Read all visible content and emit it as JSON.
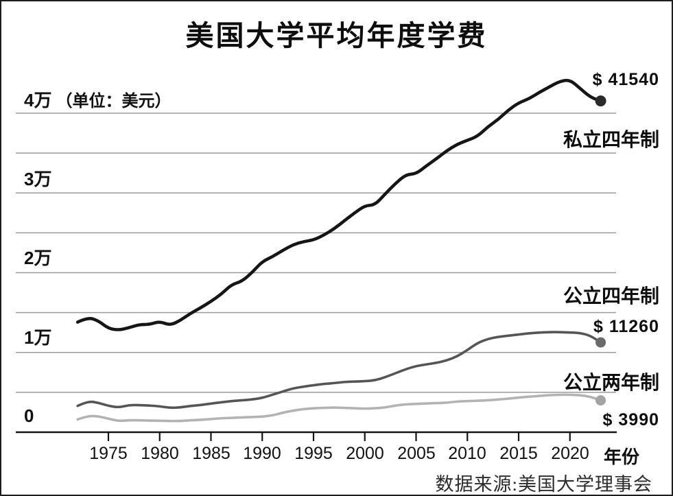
{
  "chart_data": {
    "type": "line",
    "title": "美国大学平均年度学费",
    "y_axis": {
      "unit_note": "（单位：美元）",
      "ticks": [
        {
          "value": 40000,
          "label": "4万"
        },
        {
          "value": 30000,
          "label": "3万"
        },
        {
          "value": 20000,
          "label": "2万"
        },
        {
          "value": 10000,
          "label": "1万"
        },
        {
          "value": 0,
          "label": "0"
        }
      ],
      "gridline_step": 5000,
      "range": [
        0,
        45000
      ]
    },
    "x_axis": {
      "label": "年份",
      "ticks": [
        1975,
        1980,
        1985,
        1990,
        1995,
        2000,
        2005,
        2010,
        2015,
        2020
      ],
      "range": [
        1972,
        2023
      ]
    },
    "years": [
      1972,
      1973,
      1974,
      1975,
      1976,
      1977,
      1978,
      1979,
      1980,
      1981,
      1982,
      1983,
      1984,
      1985,
      1986,
      1987,
      1988,
      1989,
      1990,
      1991,
      1992,
      1993,
      1994,
      1995,
      1996,
      1997,
      1998,
      1999,
      2000,
      2001,
      2002,
      2003,
      2004,
      2005,
      2006,
      2007,
      2008,
      2009,
      2010,
      2011,
      2012,
      2013,
      2014,
      2015,
      2016,
      2017,
      2018,
      2019,
      2020,
      2021,
      2022,
      2023
    ],
    "series": [
      {
        "name": "私立四年制",
        "end_label": "$ 41540",
        "end_value": 41540,
        "color": "#161616",
        "dot_color": "#2a2a2a",
        "values": [
          13800,
          14400,
          14000,
          13000,
          12800,
          13100,
          13500,
          13500,
          13900,
          13400,
          14000,
          14900,
          15600,
          16400,
          17300,
          18500,
          18900,
          20000,
          21400,
          22000,
          22800,
          23500,
          23900,
          24100,
          24700,
          25500,
          26500,
          27500,
          28400,
          28500,
          29900,
          31200,
          32300,
          32400,
          33400,
          34300,
          35300,
          36100,
          36600,
          37100,
          38300,
          39200,
          40400,
          41300,
          41800,
          42600,
          43300,
          44000,
          44200,
          43100,
          42000,
          41540
        ]
      },
      {
        "name": "公立四年制",
        "end_label": "$ 11260",
        "end_value": 11260,
        "color": "#555555",
        "dot_color": "#6a6a6a",
        "values": [
          3300,
          3900,
          3700,
          3300,
          3100,
          3400,
          3400,
          3350,
          3250,
          3050,
          3100,
          3300,
          3400,
          3600,
          3750,
          3900,
          4000,
          4100,
          4300,
          4700,
          5100,
          5500,
          5700,
          5900,
          6050,
          6150,
          6300,
          6350,
          6400,
          6500,
          6900,
          7400,
          7900,
          8300,
          8500,
          8700,
          9000,
          9500,
          10300,
          11200,
          11700,
          11950,
          12100,
          12250,
          12400,
          12500,
          12550,
          12550,
          12500,
          12450,
          12100,
          11260
        ]
      },
      {
        "name": "公立两年制",
        "end_label": "$ 3990",
        "end_value": 3990,
        "color": "#b3b3b3",
        "dot_color": "#a3a3a3",
        "values": [
          1600,
          2050,
          2000,
          1700,
          1400,
          1500,
          1500,
          1450,
          1450,
          1400,
          1400,
          1500,
          1550,
          1650,
          1750,
          1800,
          1850,
          1900,
          1950,
          2100,
          2450,
          2700,
          2900,
          3000,
          3050,
          3100,
          3050,
          3000,
          2950,
          3000,
          3100,
          3350,
          3500,
          3550,
          3600,
          3650,
          3700,
          3850,
          3900,
          3950,
          4000,
          4100,
          4200,
          4350,
          4450,
          4550,
          4650,
          4700,
          4700,
          4650,
          4450,
          3990
        ]
      }
    ],
    "source": "数据来源:美国大学理事会"
  }
}
